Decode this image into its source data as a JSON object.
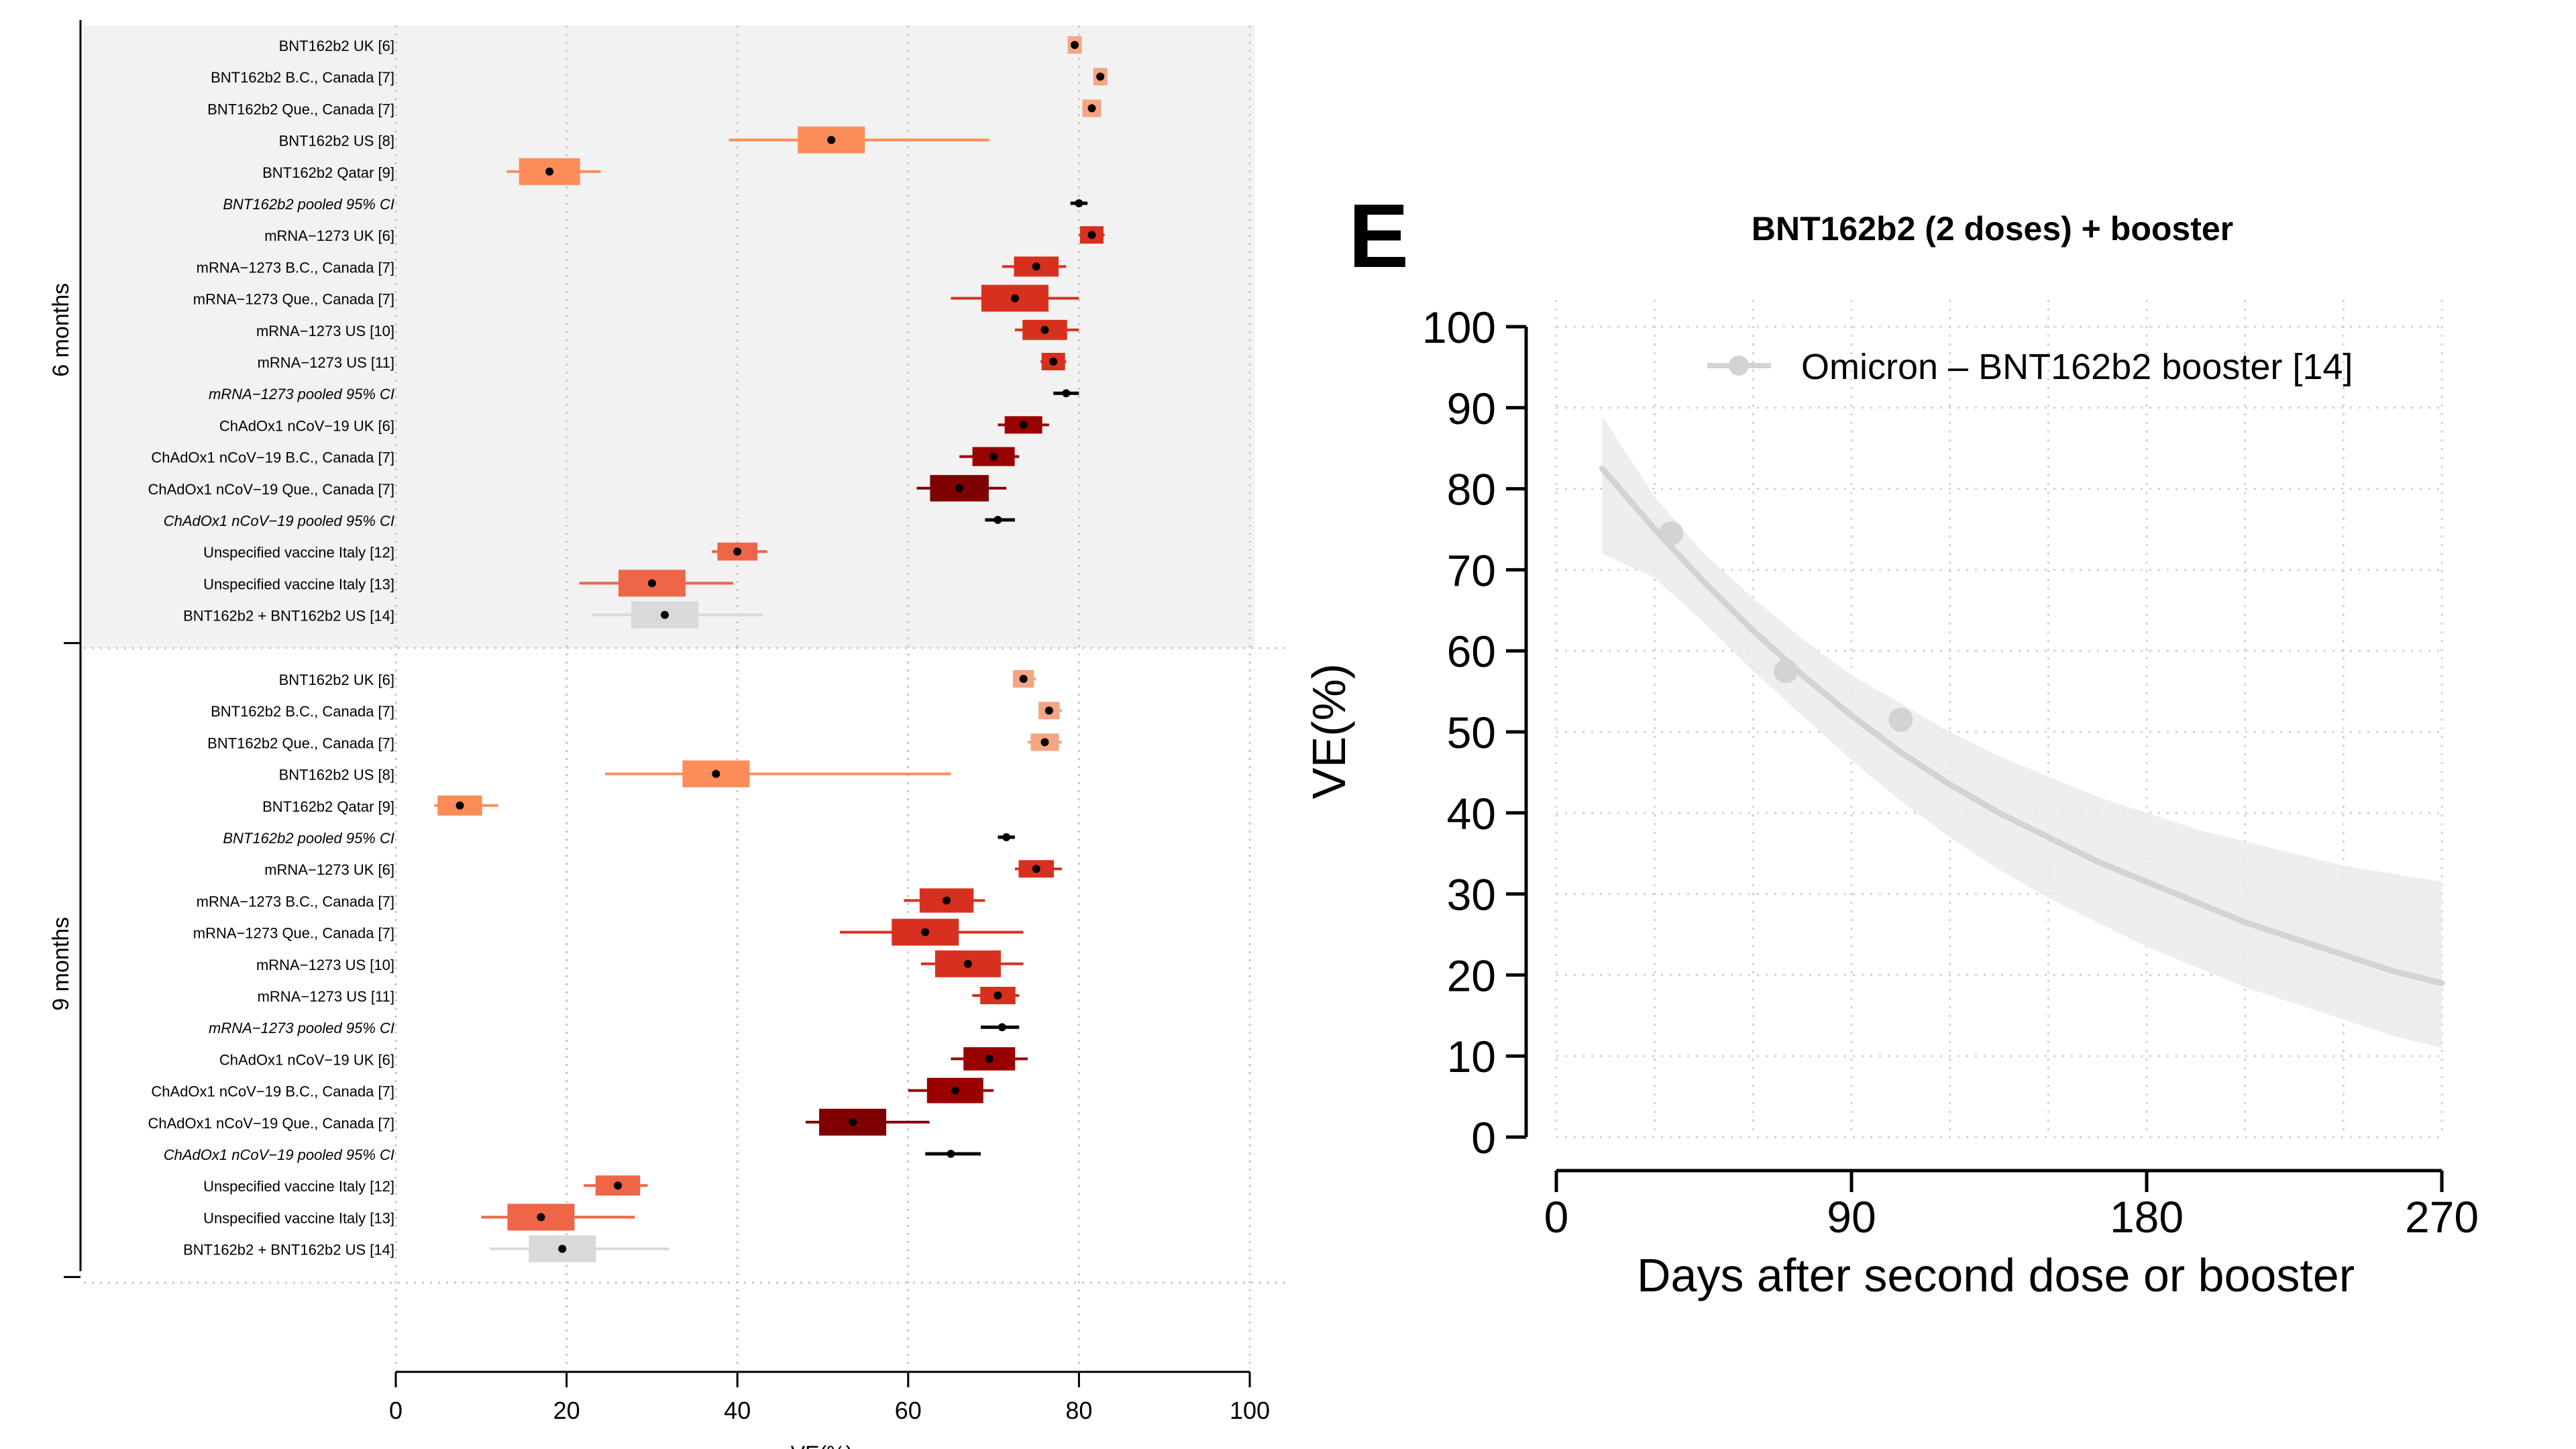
{
  "chart_data": [
    {
      "type": "forest",
      "panel": "left",
      "xlabel": "VE(%)",
      "xlim": [
        0,
        100
      ],
      "xticks": [
        0,
        20,
        40,
        60,
        80,
        100
      ],
      "grid": true,
      "groups": [
        {
          "label": "6 months",
          "rows": [
            {
              "label": "BNT162b2 UK [6]",
              "est": 79.5,
              "lo": 79,
              "hi": 80,
              "color": "#F4A582",
              "pooled": false
            },
            {
              "label": "BNT162b2 B.C., Canada [7]",
              "est": 82.5,
              "lo": 82,
              "hi": 83,
              "color": "#F4A582",
              "pooled": false
            },
            {
              "label": "BNT162b2 Que., Canada [7]",
              "est": 81.5,
              "lo": 80.5,
              "hi": 82.5,
              "color": "#F4A582",
              "pooled": false
            },
            {
              "label": "BNT162b2 US [8]",
              "est": 51,
              "lo": 39,
              "hi": 69.5,
              "color": "#FC8D59",
              "pooled": false
            },
            {
              "label": "BNT162b2 Qatar [9]",
              "est": 18,
              "lo": 13,
              "hi": 24,
              "color": "#FC8D59",
              "pooled": false
            },
            {
              "label": "BNT162b2 pooled 95% CI",
              "est": 80,
              "lo": 79,
              "hi": 81,
              "color": "#000000",
              "pooled": true
            },
            {
              "label": "mRNA−1273 UK [6]",
              "est": 81.5,
              "lo": 80,
              "hi": 83,
              "color": "#D7301F",
              "pooled": false
            },
            {
              "label": "mRNA−1273 B.C., Canada [7]",
              "est": 75,
              "lo": 71,
              "hi": 78.5,
              "color": "#D7301F",
              "pooled": false
            },
            {
              "label": "mRNA−1273 Que., Canada [7]",
              "est": 72.5,
              "lo": 65,
              "hi": 80,
              "color": "#D7301F",
              "pooled": false
            },
            {
              "label": "mRNA−1273 US [10]",
              "est": 76,
              "lo": 72.5,
              "hi": 80,
              "color": "#D7301F",
              "pooled": false
            },
            {
              "label": "mRNA−1273 US [11]",
              "est": 77,
              "lo": 75.5,
              "hi": 78.5,
              "color": "#D7301F",
              "pooled": false
            },
            {
              "label": "mRNA−1273 pooled 95% CI",
              "est": 78.5,
              "lo": 77,
              "hi": 80,
              "color": "#000000",
              "pooled": true
            },
            {
              "label": "ChAdOx1 nCoV−19 UK [6]",
              "est": 73.5,
              "lo": 70.5,
              "hi": 76.5,
              "color": "#990000",
              "pooled": false
            },
            {
              "label": "ChAdOx1 nCoV−19 B.C., Canada [7]",
              "est": 70,
              "lo": 66,
              "hi": 73,
              "color": "#990000",
              "pooled": false
            },
            {
              "label": "ChAdOx1 nCoV−19 Que., Canada [7]",
              "est": 66,
              "lo": 61,
              "hi": 71.5,
              "color": "#7F0000",
              "pooled": false
            },
            {
              "label": "ChAdOx1 nCoV−19 pooled 95% CI",
              "est": 70.5,
              "lo": 69,
              "hi": 72.5,
              "color": "#000000",
              "pooled": true
            },
            {
              "label": "Unspecified vaccine Italy [12]",
              "est": 40,
              "lo": 37,
              "hi": 43.5,
              "color": "#EF6548",
              "pooled": false
            },
            {
              "label": "Unspecified vaccine Italy [13]",
              "est": 30,
              "lo": 21.5,
              "hi": 39.5,
              "color": "#EF6548",
              "pooled": false
            },
            {
              "label": "BNT162b2 + BNT162b2 US [14]",
              "est": 31.5,
              "lo": 23,
              "hi": 43,
              "color": "#D9D9D9",
              "pooled": false
            }
          ]
        },
        {
          "label": "9 months",
          "rows": [
            {
              "label": "BNT162b2 UK [6]",
              "est": 73.5,
              "lo": 72.5,
              "hi": 75,
              "color": "#F4A582",
              "pooled": false
            },
            {
              "label": "BNT162b2 B.C., Canada [7]",
              "est": 76.5,
              "lo": 75.5,
              "hi": 78,
              "color": "#F4A582",
              "pooled": false
            },
            {
              "label": "BNT162b2 Que., Canada [7]",
              "est": 76,
              "lo": 74,
              "hi": 78,
              "color": "#F4A582",
              "pooled": false
            },
            {
              "label": "BNT162b2 US [8]",
              "est": 37.5,
              "lo": 24.5,
              "hi": 65,
              "color": "#FC8D59",
              "pooled": false
            },
            {
              "label": "BNT162b2 Qatar [9]",
              "est": 7.5,
              "lo": 4.5,
              "hi": 12,
              "color": "#FC8D59",
              "pooled": false
            },
            {
              "label": "BNT162b2 pooled 95% CI",
              "est": 71.5,
              "lo": 70.5,
              "hi": 72.5,
              "color": "#000000",
              "pooled": true
            },
            {
              "label": "mRNA−1273 UK [6]",
              "est": 75,
              "lo": 72.5,
              "hi": 78,
              "color": "#D7301F",
              "pooled": false
            },
            {
              "label": "mRNA−1273 B.C., Canada [7]",
              "est": 64.5,
              "lo": 59.5,
              "hi": 69,
              "color": "#D7301F",
              "pooled": false
            },
            {
              "label": "mRNA−1273 Que., Canada [7]",
              "est": 62,
              "lo": 52,
              "hi": 73.5,
              "color": "#D7301F",
              "pooled": false
            },
            {
              "label": "mRNA−1273 US [10]",
              "est": 67,
              "lo": 61.5,
              "hi": 73.5,
              "color": "#D7301F",
              "pooled": false
            },
            {
              "label": "mRNA−1273 US [11]",
              "est": 70.5,
              "lo": 67.5,
              "hi": 73,
              "color": "#D7301F",
              "pooled": false
            },
            {
              "label": "mRNA−1273 pooled 95% CI",
              "est": 71,
              "lo": 68.5,
              "hi": 73,
              "color": "#000000",
              "pooled": true
            },
            {
              "label": "ChAdOx1 nCoV−19 UK [6]",
              "est": 69.5,
              "lo": 65,
              "hi": 74,
              "color": "#990000",
              "pooled": false
            },
            {
              "label": "ChAdOx1 nCoV−19 B.C., Canada [7]",
              "est": 65.5,
              "lo": 60,
              "hi": 70,
              "color": "#990000",
              "pooled": false
            },
            {
              "label": "ChAdOx1 nCoV−19 Que., Canada [7]",
              "est": 53.5,
              "lo": 48,
              "hi": 62.5,
              "color": "#7F0000",
              "pooled": false
            },
            {
              "label": "ChAdOx1 nCoV−19 pooled 95% CI",
              "est": 65,
              "lo": 62,
              "hi": 68.5,
              "color": "#000000",
              "pooled": true
            },
            {
              "label": "Unspecified vaccine Italy [12]",
              "est": 26,
              "lo": 22,
              "hi": 29.5,
              "color": "#EF6548",
              "pooled": false
            },
            {
              "label": "Unspecified vaccine Italy [13]",
              "est": 17,
              "lo": 10,
              "hi": 28,
              "color": "#EF6548",
              "pooled": false
            },
            {
              "label": "BNT162b2 + BNT162b2 US [14]",
              "est": 19.5,
              "lo": 11,
              "hi": 32,
              "color": "#D9D9D9",
              "pooled": false
            }
          ]
        }
      ]
    },
    {
      "type": "line",
      "panel_letter": "E",
      "title": "BNT162b2 (2 doses) + booster",
      "xlabel": "Days after second dose or booster",
      "ylabel": "VE(%)",
      "xlim": [
        0,
        270
      ],
      "ylim": [
        0,
        100
      ],
      "xticks": [
        0,
        90,
        180,
        270
      ],
      "yticks": [
        0,
        10,
        20,
        30,
        40,
        50,
        60,
        70,
        80,
        90,
        100
      ],
      "grid": true,
      "legend_position": "top-right",
      "series": [
        {
          "name": "Omicron – BNT162b2 booster [14]",
          "color": "#D3D3D3",
          "points": [
            {
              "x": 35,
              "y": 74.5
            },
            {
              "x": 70,
              "y": 57.5
            },
            {
              "x": 105,
              "y": 51.5
            }
          ],
          "fit_curve": [
            {
              "x": 14,
              "y": 82.5
            },
            {
              "x": 30,
              "y": 75
            },
            {
              "x": 45,
              "y": 68.5
            },
            {
              "x": 60,
              "y": 62.5
            },
            {
              "x": 75,
              "y": 57
            },
            {
              "x": 90,
              "y": 52
            },
            {
              "x": 105,
              "y": 47.5
            },
            {
              "x": 120,
              "y": 43.5
            },
            {
              "x": 135,
              "y": 40
            },
            {
              "x": 150,
              "y": 37
            },
            {
              "x": 165,
              "y": 34
            },
            {
              "x": 180,
              "y": 31.5
            },
            {
              "x": 195,
              "y": 29
            },
            {
              "x": 210,
              "y": 26.5
            },
            {
              "x": 225,
              "y": 24.5
            },
            {
              "x": 240,
              "y": 22.5
            },
            {
              "x": 255,
              "y": 20.5
            },
            {
              "x": 270,
              "y": 19
            }
          ],
          "band_upper": [
            {
              "x": 14,
              "y": 89
            },
            {
              "x": 30,
              "y": 79
            },
            {
              "x": 45,
              "y": 72
            },
            {
              "x": 60,
              "y": 66.5
            },
            {
              "x": 75,
              "y": 61.5
            },
            {
              "x": 90,
              "y": 57
            },
            {
              "x": 105,
              "y": 53.5
            },
            {
              "x": 120,
              "y": 50
            },
            {
              "x": 135,
              "y": 47
            },
            {
              "x": 150,
              "y": 44.5
            },
            {
              "x": 165,
              "y": 42
            },
            {
              "x": 180,
              "y": 40
            },
            {
              "x": 195,
              "y": 38
            },
            {
              "x": 210,
              "y": 36.5
            },
            {
              "x": 225,
              "y": 35
            },
            {
              "x": 240,
              "y": 33.5
            },
            {
              "x": 255,
              "y": 32.5
            },
            {
              "x": 270,
              "y": 31.5
            }
          ],
          "band_lower": [
            {
              "x": 14,
              "y": 72
            },
            {
              "x": 30,
              "y": 69
            },
            {
              "x": 45,
              "y": 63.5
            },
            {
              "x": 60,
              "y": 57.5
            },
            {
              "x": 75,
              "y": 52
            },
            {
              "x": 90,
              "y": 46.5
            },
            {
              "x": 105,
              "y": 41.5
            },
            {
              "x": 120,
              "y": 37
            },
            {
              "x": 135,
              "y": 33
            },
            {
              "x": 150,
              "y": 29.5
            },
            {
              "x": 165,
              "y": 26.5
            },
            {
              "x": 180,
              "y": 23.5
            },
            {
              "x": 195,
              "y": 21
            },
            {
              "x": 210,
              "y": 18.5
            },
            {
              "x": 225,
              "y": 16.5
            },
            {
              "x": 240,
              "y": 14.5
            },
            {
              "x": 255,
              "y": 12.5
            },
            {
              "x": 270,
              "y": 11
            }
          ]
        }
      ]
    }
  ]
}
